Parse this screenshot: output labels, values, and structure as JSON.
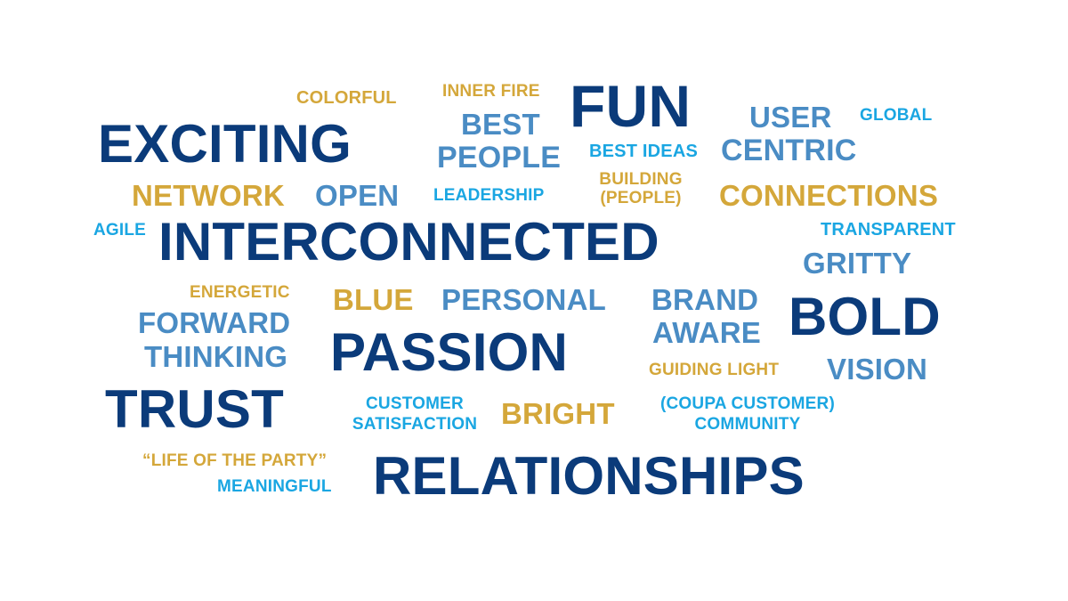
{
  "colors": {
    "navy": "#0b3b7a",
    "steel": "#4a8cc4",
    "sky": "#1aa6e2",
    "gold": "#d4a73a",
    "background": "#ffffff"
  },
  "words": {
    "colorful": "COLORFUL",
    "inner_fire": "INNER FIRE",
    "fun": "FUN",
    "user": "USER",
    "global": "GLOBAL",
    "best": "BEST",
    "people": "PEOPLE",
    "best_ideas": "BEST IDEAS",
    "centric": "CENTRIC",
    "exciting": "EXCITING",
    "building": "BUILDING",
    "building_people": "(PEOPLE)",
    "network": "NETWORK",
    "open": "OPEN",
    "leadership": "LEADERSHIP",
    "connections": "CONNECTIONS",
    "agile": "AGILE",
    "interconnected": "INTERCONNECTED",
    "transparent": "TRANSPARENT",
    "gritty": "GRITTY",
    "energetic": "ENERGETIC",
    "blue": "BLUE",
    "personal": "PERSONAL",
    "brand": "BRAND",
    "aware": "AWARE",
    "bold": "BOLD",
    "forward": "FORWARD",
    "thinking": "THINKING",
    "passion": "PASSION",
    "guiding_light": "GUIDING LIGHT",
    "vision": "VISION",
    "trust": "TRUST",
    "customer": "CUSTOMER",
    "satisfaction": "SATISFACTION",
    "bright": "BRIGHT",
    "coupa_customer": "(COUPA CUSTOMER)",
    "community": "COMMUNITY",
    "life_of_the_party": "“LIFE OF THE PARTY”",
    "meaningful": "MEANINGFUL",
    "relationships": "RELATIONSHIPS"
  }
}
